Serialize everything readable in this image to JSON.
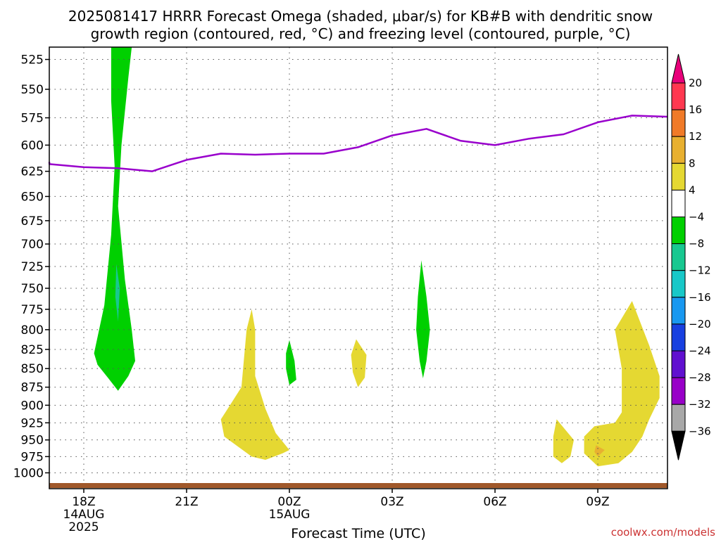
{
  "title_line1": "2025081417 HRRR Forecast Omega (shaded, μbar/s) for KB#B with dendritic snow",
  "title_line2": "growth region (contoured, red, °C) and freezing level (contoured, purple, °C)",
  "credit": "coolwx.com/models",
  "chart_data": {
    "type": "contour",
    "title": "2025081417 HRRR Forecast Omega (shaded, μbar/s) for KB#B with dendritic snow growth region (contoured, red, °C) and freezing level (contoured, purple, °C)",
    "xlabel": "Forecast Time (UTC)",
    "ylabel": "",
    "x_unit": "hours after 2025-08-14 17Z",
    "xlim": [
      0,
      18.5
    ],
    "ylim": [
      1025,
      515
    ],
    "y_scale": "log",
    "y_ticks": [
      525,
      550,
      575,
      600,
      625,
      650,
      675,
      700,
      725,
      750,
      775,
      800,
      825,
      850,
      875,
      900,
      925,
      950,
      975,
      1000
    ],
    "x_ticks": [
      {
        "x": 1,
        "label": "18Z",
        "sub1": "14AUG",
        "sub2": "2025"
      },
      {
        "x": 4,
        "label": "21Z",
        "sub1": "",
        "sub2": ""
      },
      {
        "x": 7,
        "label": "00Z",
        "sub1": "15AUG",
        "sub2": ""
      },
      {
        "x": 10,
        "label": "03Z",
        "sub1": "",
        "sub2": ""
      },
      {
        "x": 13,
        "label": "06Z",
        "sub1": "",
        "sub2": ""
      },
      {
        "x": 16,
        "label": "09Z",
        "sub1": "",
        "sub2": ""
      }
    ],
    "grid": true,
    "colorbar": {
      "levels": [
        "20",
        "16",
        "12",
        "8",
        "4",
        "−4",
        "−8",
        "−12",
        "−16",
        "−20",
        "−24",
        "−28",
        "−32",
        "−36"
      ],
      "bins": [
        "#ff3850",
        "#f07a28",
        "#e8b030",
        "#e5d832",
        "#ffffff",
        "#00d000",
        "#18c890",
        "#18c8c8",
        "#1898f0",
        "#1840e0",
        "#6010d0",
        "#9800c8",
        "#a8a8a8"
      ],
      "top_color": "#e8007a",
      "bottom_color": "#000000"
    },
    "freezing_level": {
      "color": "#9900cc",
      "points": [
        [
          -1,
          616
        ],
        [
          0,
          618
        ],
        [
          1,
          621
        ],
        [
          2,
          622
        ],
        [
          3,
          625
        ],
        [
          4,
          614
        ],
        [
          5,
          608
        ],
        [
          6,
          609
        ],
        [
          7,
          608
        ],
        [
          8,
          608
        ],
        [
          9,
          602
        ],
        [
          10,
          591
        ],
        [
          11,
          585
        ],
        [
          12,
          596
        ],
        [
          13,
          600
        ],
        [
          14,
          594
        ],
        [
          15,
          590
        ],
        [
          16,
          579
        ],
        [
          17,
          573
        ],
        [
          18.5,
          574
        ]
      ]
    },
    "omega_regions": [
      {
        "color": "#00d000",
        "value_range": "-8 to -4",
        "points": [
          [
            1.8,
            515
          ],
          [
            2.4,
            515
          ],
          [
            2.3,
            540
          ],
          [
            2.1,
            600
          ],
          [
            2.0,
            660
          ],
          [
            2.2,
            740
          ],
          [
            2.4,
            800
          ],
          [
            2.5,
            840
          ],
          [
            2.3,
            860
          ],
          [
            2.0,
            880
          ],
          [
            1.7,
            862
          ],
          [
            1.4,
            845
          ],
          [
            1.3,
            830
          ],
          [
            1.6,
            770
          ],
          [
            1.8,
            690
          ],
          [
            1.9,
            620
          ],
          [
            1.8,
            560
          ]
        ]
      },
      {
        "color": "#18c890",
        "value_range": "-12 to -8",
        "points": [
          [
            1.95,
            722
          ],
          [
            2.05,
            750
          ],
          [
            2.0,
            790
          ],
          [
            1.92,
            760
          ]
        ]
      },
      {
        "color": "#00d000",
        "value_range": "-8 to -4",
        "points": [
          [
            7.0,
            813
          ],
          [
            7.15,
            840
          ],
          [
            7.2,
            865
          ],
          [
            7.0,
            872
          ],
          [
            6.9,
            850
          ],
          [
            6.9,
            830
          ]
        ]
      },
      {
        "color": "#00d000",
        "value_range": "-8 to -4",
        "points": [
          [
            10.85,
            718
          ],
          [
            11.0,
            760
          ],
          [
            11.1,
            800
          ],
          [
            11.0,
            840
          ],
          [
            10.9,
            863
          ],
          [
            10.8,
            840
          ],
          [
            10.7,
            800
          ],
          [
            10.75,
            760
          ]
        ]
      },
      {
        "color": "#e5d832",
        "value_range": "4 to 8",
        "points": [
          [
            5.9,
            775
          ],
          [
            6.0,
            800
          ],
          [
            6.0,
            860
          ],
          [
            6.3,
            905
          ],
          [
            6.6,
            940
          ],
          [
            7.0,
            965
          ],
          [
            6.8,
            970
          ],
          [
            6.3,
            980
          ],
          [
            5.9,
            975
          ],
          [
            5.1,
            945
          ],
          [
            5.0,
            920
          ],
          [
            5.2,
            905
          ],
          [
            5.6,
            875
          ],
          [
            5.75,
            800
          ]
        ]
      },
      {
        "color": "#e5d832",
        "value_range": "4 to 8",
        "points": [
          [
            8.95,
            812
          ],
          [
            9.25,
            832
          ],
          [
            9.2,
            862
          ],
          [
            9.0,
            875
          ],
          [
            8.85,
            855
          ],
          [
            8.8,
            832
          ]
        ]
      },
      {
        "color": "#e5d832",
        "value_range": "4 to 8",
        "points": [
          [
            14.8,
            920
          ],
          [
            15.3,
            950
          ],
          [
            15.2,
            975
          ],
          [
            14.95,
            985
          ],
          [
            14.7,
            975
          ],
          [
            14.7,
            945
          ]
        ]
      },
      {
        "color": "#e5d832",
        "value_range": "4 to 8",
        "points": [
          [
            17.0,
            765
          ],
          [
            17.5,
            820
          ],
          [
            17.8,
            860
          ],
          [
            17.8,
            890
          ],
          [
            17.5,
            920
          ],
          [
            17.3,
            945
          ],
          [
            17.0,
            968
          ],
          [
            16.6,
            985
          ],
          [
            16.0,
            990
          ],
          [
            15.6,
            970
          ],
          [
            15.6,
            945
          ],
          [
            15.9,
            930
          ],
          [
            16.5,
            925
          ],
          [
            16.7,
            910
          ],
          [
            16.7,
            850
          ],
          [
            16.5,
            800
          ]
        ]
      },
      {
        "color": "#e8b030",
        "value_range": "8 to 12",
        "points": [
          [
            15.95,
            958
          ],
          [
            16.2,
            965
          ],
          [
            16.0,
            975
          ],
          [
            15.9,
            968
          ]
        ]
      }
    ],
    "ground_band_color": "#a0582a"
  }
}
